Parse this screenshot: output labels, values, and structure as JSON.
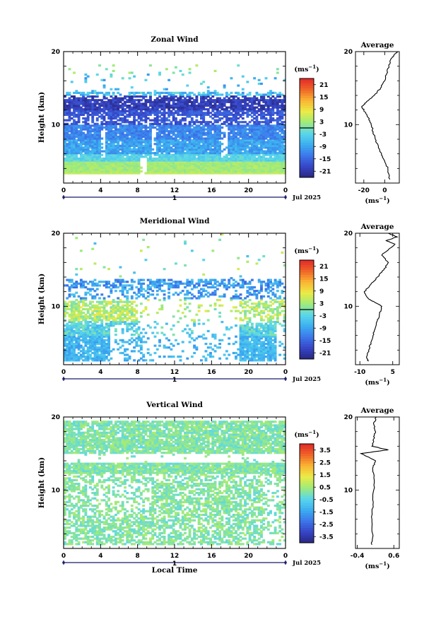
{
  "chart_data": [
    {
      "type": "heatmap",
      "title": "Zonal Wind",
      "ylabel": "Height (km)",
      "xlabel": "",
      "xlim": [
        0,
        24
      ],
      "ylim": [
        2,
        20
      ],
      "x_ticks": [
        "0",
        "4",
        "8",
        "12",
        "16",
        "20",
        "0"
      ],
      "y_ticks": [
        "10",
        "20"
      ],
      "day_label": "1",
      "date_label": "Jul 2025",
      "colorbar": {
        "unit": "(ms",
        "unit_exp": "−1",
        "unit_close": ")",
        "tick_labels": [
          "21",
          "15",
          "9",
          "3",
          "-3",
          "-9",
          "-15",
          "-21"
        ],
        "vmin": -24,
        "vmax": 24
      },
      "profile": {
        "title": "Average",
        "x_ticks": [
          "-20",
          "0"
        ],
        "xlim": [
          -28,
          14
        ],
        "unit": "(ms",
        "unit_exp": "−1",
        "unit_close": ")",
        "heights": [
          2.5,
          4,
          5,
          6,
          7,
          8,
          9,
          10,
          11,
          12,
          12.5,
          13,
          14,
          15,
          16,
          17,
          18,
          19,
          19.5,
          20
        ],
        "values": [
          5,
          3,
          0,
          -3,
          -6,
          -9,
          -11,
          -13,
          -16,
          -20,
          -22,
          -18,
          -10,
          -4,
          0,
          2,
          4,
          6,
          9,
          12
        ]
      }
    },
    {
      "type": "heatmap",
      "title": "Meridional Wind",
      "ylabel": "Height (km)",
      "xlabel": "",
      "xlim": [
        0,
        24
      ],
      "ylim": [
        2,
        20
      ],
      "x_ticks": [
        "0",
        "4",
        "8",
        "12",
        "16",
        "20",
        "0"
      ],
      "y_ticks": [
        "10",
        "20"
      ],
      "day_label": "1",
      "date_label": "Jul 2025",
      "colorbar": {
        "unit": "(ms",
        "unit_exp": "−1",
        "unit_close": ")",
        "tick_labels": [
          "21",
          "15",
          "9",
          "3",
          "-3",
          "-9",
          "-15",
          "-21"
        ],
        "vmin": -24,
        "vmax": 24
      },
      "profile": {
        "title": "Average",
        "x_ticks": [
          "-10",
          "5"
        ],
        "xlim": [
          -12,
          8
        ],
        "unit": "(ms",
        "unit_exp": "−1",
        "unit_close": ")",
        "heights": [
          2.5,
          3,
          4,
          5,
          6,
          7,
          8,
          9,
          10,
          10.5,
          11,
          12,
          13,
          14,
          15,
          16,
          17,
          18,
          18.5,
          19,
          19.5,
          20
        ],
        "values": [
          -6,
          -7,
          -6,
          -5,
          -4,
          -3,
          -2,
          -1,
          0,
          -3,
          -6,
          -8,
          -5,
          -2,
          1,
          3,
          0,
          4,
          6,
          2,
          7,
          3
        ]
      }
    },
    {
      "type": "heatmap",
      "title": "Vertical Wind",
      "ylabel": "Height (km)",
      "xlabel": "Local Time",
      "xlim": [
        0,
        24
      ],
      "ylim": [
        2,
        20
      ],
      "x_ticks": [
        "0",
        "4",
        "8",
        "12",
        "16",
        "20",
        "0"
      ],
      "y_ticks": [
        "10",
        "20"
      ],
      "day_label": "1",
      "date_label": "Jul 2025",
      "colorbar": {
        "unit": "(ms",
        "unit_exp": "−1",
        "unit_close": ")",
        "tick_labels": [
          "3.5",
          "2.5",
          "1.5",
          "0.5",
          "-0.5",
          "-1.5",
          "-2.5",
          "-3.5"
        ],
        "vmin": -4,
        "vmax": 4
      },
      "profile": {
        "title": "Average",
        "x_ticks": [
          "-0.4",
          "0.6"
        ],
        "xlim": [
          -0.45,
          0.75
        ],
        "unit": "(ms",
        "unit_exp": "−1",
        "unit_close": ")",
        "heights": [
          2.5,
          4,
          6,
          8,
          10,
          12,
          13,
          14,
          15,
          15.5,
          16,
          17,
          18,
          19,
          20
        ],
        "values": [
          0.0,
          0.02,
          0.0,
          0.03,
          0.05,
          0.06,
          0.02,
          0.1,
          -0.3,
          0.45,
          0.0,
          0.05,
          0.1,
          0.05,
          0.12
        ]
      }
    }
  ]
}
